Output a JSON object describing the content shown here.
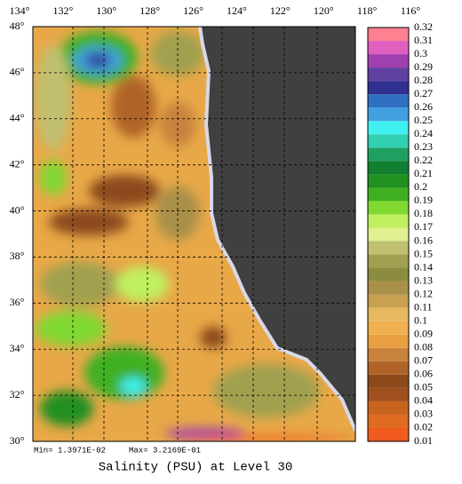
{
  "map": {
    "title": "Salinity (PSU) at Level 30",
    "min_text": "Min= 1.3971E-02",
    "max_text": "Max= 3.2169E-01",
    "lon_labels": [
      "134°",
      "132°",
      "130°",
      "128°",
      "126°",
      "124°",
      "122°",
      "120°",
      "118°",
      "116°"
    ],
    "lat_labels": [
      "48°",
      "46°",
      "44°",
      "42°",
      "40°",
      "38°",
      "36°",
      "34°",
      "32°",
      "30°"
    ]
  },
  "colorbar": {
    "levels": [
      0.01,
      0.02,
      0.03,
      0.04,
      0.05,
      0.06,
      0.07,
      0.08,
      0.09,
      0.1,
      0.11,
      0.12,
      0.13,
      0.14,
      0.15,
      0.16,
      0.17,
      0.18,
      0.19,
      0.2,
      0.21,
      0.22,
      0.23,
      0.24,
      0.25,
      0.26,
      0.27,
      0.28,
      0.29,
      0.3,
      0.31,
      0.32
    ],
    "colors": [
      "#f05a1e",
      "#e06a20",
      "#c8641e",
      "#a0501e",
      "#8c4a1a",
      "#b06428",
      "#c8823c",
      "#e8a040",
      "#f0b050",
      "#e8b860",
      "#c8a050",
      "#a89048",
      "#8c8c40",
      "#a0a050",
      "#c0c070",
      "#e0f090",
      "#c0f060",
      "#80d830",
      "#40b020",
      "#209020",
      "#108030",
      "#20a060",
      "#30d0b0",
      "#40f0f0",
      "#40a0e0",
      "#3070c0",
      "#303090",
      "#6040a0",
      "#a040b0",
      "#e060c0",
      "#ff8090"
    ]
  }
}
